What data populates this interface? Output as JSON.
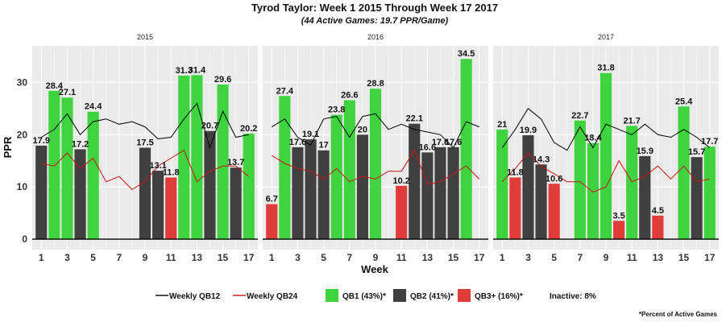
{
  "title": "Tyrod Taylor: Week 1 2015 Through Week 17 2017",
  "subtitle": "(44 Active Games: 19.7 PPR/Game)",
  "footnote": "*Percent of Active Games",
  "colors": {
    "qb1": "#3fd43f",
    "qb2": "#404040",
    "qb3": "#e03c3c",
    "qb12_line": "#000000",
    "qb24_line": "#cc1111",
    "panel_bg": "#ebebeb",
    "grid": "#ffffff"
  },
  "chart_data": {
    "type": "bar",
    "xlabel": "Week",
    "ylabel": "PPR",
    "ylim": [
      -2,
      37
    ],
    "yticks": [
      0,
      10,
      20,
      30
    ],
    "xticks": [
      1,
      3,
      5,
      7,
      9,
      11,
      13,
      15,
      17
    ],
    "grid": true,
    "legend_position": "bottom",
    "legend": [
      {
        "key": "qb12",
        "label": "Weekly QB12",
        "kind": "line"
      },
      {
        "key": "qb24",
        "label": "Weekly QB24",
        "kind": "line"
      },
      {
        "key": "qb1",
        "label": "QB1 (43%)*",
        "kind": "box"
      },
      {
        "key": "qb2",
        "label": "QB2 (41%)*",
        "kind": "box"
      },
      {
        "key": "qb3",
        "label": "QB3+ (16%)*",
        "kind": "box"
      },
      {
        "key": "inactive",
        "label": "Inactive: 8%",
        "kind": "text"
      }
    ],
    "panels": [
      {
        "label": "2015",
        "bars": [
          {
            "week": 1,
            "value": 17.9,
            "tier": "qb2"
          },
          {
            "week": 2,
            "value": 28.4,
            "tier": "qb1"
          },
          {
            "week": 3,
            "value": 27.1,
            "tier": "qb1"
          },
          {
            "week": 4,
            "value": 17.2,
            "tier": "qb2"
          },
          {
            "week": 5,
            "value": 24.4,
            "tier": "qb1"
          },
          {
            "week": 9,
            "value": 17.5,
            "tier": "qb2"
          },
          {
            "week": 10,
            "value": 13.1,
            "tier": "qb2"
          },
          {
            "week": 11,
            "value": 11.8,
            "tier": "qb3"
          },
          {
            "week": 12,
            "value": 31.3,
            "tier": "qb1"
          },
          {
            "week": 13,
            "value": 31.4,
            "tier": "qb1"
          },
          {
            "week": 14,
            "value": 20.7,
            "tier": "qb2"
          },
          {
            "week": 15,
            "value": 29.6,
            "tier": "qb1"
          },
          {
            "week": 16,
            "value": 13.7,
            "tier": "qb2"
          },
          {
            "week": 17,
            "value": 20.2,
            "tier": "qb1"
          }
        ],
        "qb12": [
          [
            1,
            19.5
          ],
          [
            2,
            21
          ],
          [
            3,
            24
          ],
          [
            4,
            20
          ],
          [
            5,
            22.5
          ],
          [
            6,
            23
          ],
          [
            7,
            22
          ],
          [
            8,
            22.5
          ],
          [
            9,
            21.5
          ],
          [
            10,
            19.2
          ],
          [
            11,
            19.5
          ],
          [
            12,
            23
          ],
          [
            13,
            26
          ],
          [
            14,
            17.5
          ],
          [
            15,
            24.5
          ],
          [
            16,
            19.5
          ],
          [
            17,
            20
          ]
        ],
        "qb24": [
          [
            1,
            14.5
          ],
          [
            2,
            14
          ],
          [
            3,
            16.5
          ],
          [
            4,
            13.5
          ],
          [
            5,
            15.5
          ],
          [
            6,
            11
          ],
          [
            7,
            12
          ],
          [
            8,
            9.5
          ],
          [
            9,
            11
          ],
          [
            10,
            14
          ],
          [
            11,
            15.5
          ],
          [
            12,
            17
          ],
          [
            13,
            11
          ],
          [
            14,
            13
          ],
          [
            15,
            14
          ],
          [
            16,
            14
          ],
          [
            17,
            12
          ]
        ]
      },
      {
        "label": "2016",
        "bars": [
          {
            "week": 1,
            "value": 6.7,
            "tier": "qb3"
          },
          {
            "week": 2,
            "value": 27.4,
            "tier": "qb1"
          },
          {
            "week": 3,
            "value": 17.6,
            "tier": "qb2"
          },
          {
            "week": 4,
            "value": 19.1,
            "tier": "qb2"
          },
          {
            "week": 5,
            "value": 17.0,
            "tier": "qb2"
          },
          {
            "week": 6,
            "value": 23.8,
            "tier": "qb1"
          },
          {
            "week": 7,
            "value": 26.6,
            "tier": "qb1"
          },
          {
            "week": 8,
            "value": 20.0,
            "tier": "qb2"
          },
          {
            "week": 9,
            "value": 28.8,
            "tier": "qb1"
          },
          {
            "week": 11,
            "value": 10.2,
            "tier": "qb3"
          },
          {
            "week": 12,
            "value": 22.1,
            "tier": "qb2"
          },
          {
            "week": 13,
            "value": 16.6,
            "tier": "qb2"
          },
          {
            "week": 14,
            "value": 17.6,
            "tier": "qb2"
          },
          {
            "week": 15,
            "value": 17.6,
            "tier": "qb2"
          },
          {
            "week": 16,
            "value": 34.5,
            "tier": "qb1"
          }
        ],
        "qb12": [
          [
            1,
            21.5
          ],
          [
            2,
            23
          ],
          [
            3,
            19.5
          ],
          [
            4,
            18
          ],
          [
            5,
            23
          ],
          [
            6,
            23.5
          ],
          [
            7,
            19.5
          ],
          [
            8,
            23.5
          ],
          [
            9,
            24
          ],
          [
            10,
            21
          ],
          [
            11,
            22
          ],
          [
            12,
            21
          ],
          [
            13,
            20.5
          ],
          [
            14,
            20
          ],
          [
            15,
            17.5
          ],
          [
            16,
            22.5
          ],
          [
            17,
            21.5
          ]
        ],
        "qb24": [
          [
            1,
            16
          ],
          [
            2,
            14.5
          ],
          [
            3,
            13.5
          ],
          [
            4,
            13
          ],
          [
            5,
            11.5
          ],
          [
            6,
            13.5
          ],
          [
            7,
            11
          ],
          [
            8,
            12
          ],
          [
            9,
            11.5
          ],
          [
            10,
            13
          ],
          [
            11,
            13
          ],
          [
            12,
            17
          ],
          [
            13,
            10.5
          ],
          [
            14,
            11
          ],
          [
            15,
            12.5
          ],
          [
            16,
            14
          ],
          [
            17,
            11.5
          ]
        ]
      },
      {
        "label": "2017",
        "bars": [
          {
            "week": 1,
            "value": 21.0,
            "tier": "qb1"
          },
          {
            "week": 2,
            "value": 11.8,
            "tier": "qb3"
          },
          {
            "week": 3,
            "value": 19.9,
            "tier": "qb2"
          },
          {
            "week": 4,
            "value": 14.3,
            "tier": "qb2"
          },
          {
            "week": 5,
            "value": 10.6,
            "tier": "qb3"
          },
          {
            "week": 7,
            "value": 22.7,
            "tier": "qb1"
          },
          {
            "week": 8,
            "value": 18.4,
            "tier": "qb1"
          },
          {
            "week": 9,
            "value": 31.8,
            "tier": "qb1"
          },
          {
            "week": 10,
            "value": 3.5,
            "tier": "qb3"
          },
          {
            "week": 11,
            "value": 21.7,
            "tier": "qb1"
          },
          {
            "week": 12,
            "value": 15.9,
            "tier": "qb2"
          },
          {
            "week": 13,
            "value": 4.5,
            "tier": "qb3"
          },
          {
            "week": 15,
            "value": 25.4,
            "tier": "qb1"
          },
          {
            "week": 16,
            "value": 15.7,
            "tier": "qb2"
          },
          {
            "week": 17,
            "value": 17.7,
            "tier": "qb1"
          }
        ],
        "qb12": [
          [
            1,
            17.5
          ],
          [
            2,
            21
          ],
          [
            3,
            25
          ],
          [
            4,
            23
          ],
          [
            5,
            18.5
          ],
          [
            6,
            17
          ],
          [
            7,
            21.5
          ],
          [
            8,
            17.5
          ],
          [
            9,
            22
          ],
          [
            10,
            21
          ],
          [
            11,
            20
          ],
          [
            12,
            22
          ],
          [
            13,
            20
          ],
          [
            14,
            19.5
          ],
          [
            15,
            21
          ],
          [
            16,
            19.5
          ],
          [
            17,
            17.5
          ]
        ],
        "qb24": [
          [
            1,
            11
          ],
          [
            2,
            13.5
          ],
          [
            3,
            16.5
          ],
          [
            4,
            14
          ],
          [
            5,
            12.5
          ],
          [
            6,
            11
          ],
          [
            7,
            11
          ],
          [
            8,
            9
          ],
          [
            9,
            10
          ],
          [
            10,
            15
          ],
          [
            11,
            11
          ],
          [
            12,
            12
          ],
          [
            13,
            14
          ],
          [
            14,
            11.5
          ],
          [
            15,
            14
          ],
          [
            16,
            11
          ],
          [
            17,
            11.5
          ]
        ]
      }
    ]
  }
}
